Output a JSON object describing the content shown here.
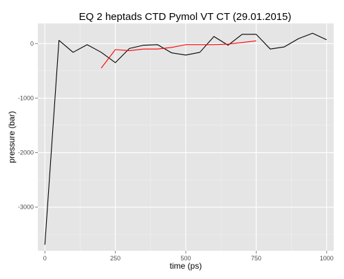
{
  "chart_data": {
    "type": "line",
    "title": "EQ 2 heptads CTD Pymol VT CT (29.01.2015)",
    "xlabel": "time (ps)",
    "ylabel": "pressure (bar)",
    "xlim": [
      -25,
      1025
    ],
    "ylim": [
      -3800,
      370
    ],
    "x_ticks": [
      0,
      250,
      500,
      750,
      1000
    ],
    "x_tick_labels": [
      "0",
      "250",
      "500",
      "750",
      "1000"
    ],
    "y_ticks": [
      -3000,
      -2000,
      -1000,
      0
    ],
    "y_tick_labels": [
      "-3000",
      "-2000",
      "-1000",
      "0"
    ],
    "grid": true,
    "legend": "none",
    "background_color": "#e5e5e5",
    "grid_color": "#ffffff",
    "series": [
      {
        "color": "#000000",
        "x": [
          0,
          50,
          100,
          150,
          200,
          250,
          300,
          350,
          400,
          450,
          500,
          550,
          600,
          650,
          700,
          750,
          800,
          850,
          900,
          950,
          1000
        ],
        "y": [
          -3690,
          60,
          -160,
          -20,
          -160,
          -350,
          -90,
          -30,
          -20,
          -170,
          -210,
          -160,
          130,
          -30,
          170,
          170,
          -100,
          -60,
          90,
          190,
          70
        ]
      },
      {
        "color": "#ff0000",
        "x": [
          200,
          250,
          300,
          350,
          400,
          450,
          500,
          550,
          600,
          650,
          700,
          750
        ],
        "y": [
          -450,
          -110,
          -130,
          -100,
          -100,
          -70,
          -20,
          -20,
          -20,
          -10,
          20,
          50
        ]
      }
    ]
  }
}
